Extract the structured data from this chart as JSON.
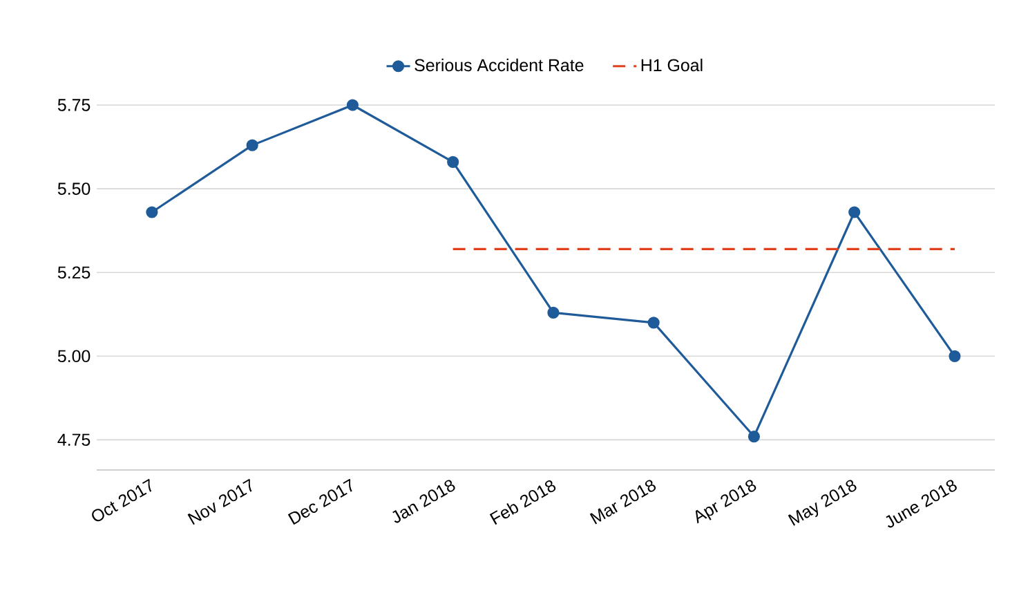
{
  "chart_data": {
    "type": "line",
    "categories": [
      "Oct 2017",
      "Nov 2017",
      "Dec 2017",
      "Jan 2018",
      "Feb 2018",
      "Mar 2018",
      "Apr 2018",
      "May 2018",
      "June 2018"
    ],
    "series": [
      {
        "name": "Serious Accident Rate",
        "color": "#1f5b99",
        "values": [
          5.43,
          5.63,
          5.75,
          5.58,
          5.13,
          5.1,
          4.76,
          5.43,
          5.0
        ],
        "marker": "circle",
        "line_style": "solid"
      },
      {
        "name": "H1 Goal",
        "color": "#e0401c",
        "values": [
          null,
          null,
          null,
          5.32,
          5.32,
          5.32,
          5.32,
          5.32,
          5.32
        ],
        "marker": "none",
        "line_style": "dashed"
      }
    ],
    "ylim": [
      4.66,
      5.75
    ],
    "yticks": [
      {
        "value": 4.75,
        "label": "4.75"
      },
      {
        "value": 5.0,
        "label": "5.00"
      },
      {
        "value": 5.25,
        "label": "5.25"
      },
      {
        "value": 5.5,
        "label": "5.50"
      },
      {
        "value": 5.75,
        "label": "5.75"
      }
    ],
    "grid": "y",
    "legend": "top"
  }
}
